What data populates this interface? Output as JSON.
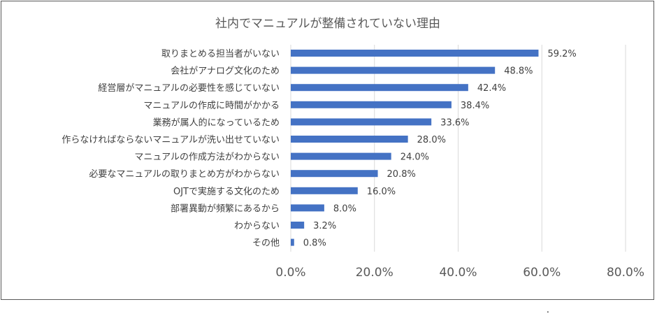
{
  "footnote": ".",
  "chart_data": {
    "type": "bar",
    "orientation": "horizontal",
    "title": "社内でマニュアルが整備されていない理由",
    "xlabel": "",
    "ylabel": "",
    "categories": [
      "取りまとめる担当者がいない",
      "会社がアナログ文化のため",
      "経営層がマニュアルの必要性を感じていない",
      "マニュアルの作成に時間がかかる",
      "業務が属人的になっているため",
      "作らなければならないマニュアルが洗い出せていない",
      "マニュアルの作成方法がわからない",
      "必要なマニュアルの取りまとめ方がわからない",
      "OJTで実施する文化のため",
      "部署異動が頻繁にあるから",
      "わからない",
      "その他"
    ],
    "values": [
      59.2,
      48.8,
      42.4,
      38.4,
      33.6,
      28.0,
      24.0,
      20.8,
      16.0,
      8.0,
      3.2,
      0.8
    ],
    "data_labels": [
      "59.2%",
      "48.8%",
      "42.4%",
      "38.4%",
      "33.6%",
      "28.0%",
      "24.0%",
      "20.8%",
      "16.0%",
      "8.0%",
      "3.2%",
      "0.8%"
    ],
    "xlim": [
      0,
      80
    ],
    "x_ticks": [
      0,
      20,
      40,
      60,
      80
    ],
    "x_tick_labels": [
      "0.0%",
      "20.0%",
      "40.0%",
      "60.0%",
      "80.0%"
    ],
    "grid": true,
    "legend": "none",
    "bar_color": "#4472C4"
  }
}
